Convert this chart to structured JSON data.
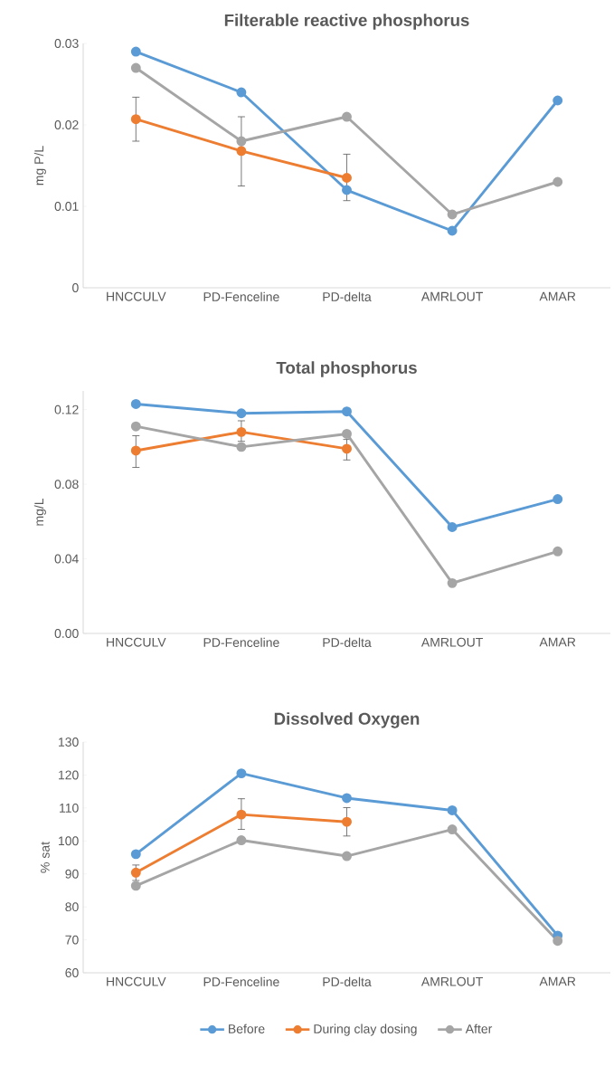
{
  "chart_data": [
    {
      "type": "line",
      "title": "Filterable reactive phosphorus",
      "ylabel": "mg P/L",
      "categories": [
        "HNCCULV",
        "PD-Fenceline",
        "PD-delta",
        "AMRLOUT",
        "AMAR"
      ],
      "ylim": [
        0,
        0.03
      ],
      "yticks": [
        0,
        0.01,
        0.02,
        0.03
      ],
      "marker": "circle",
      "line_style": "solid",
      "series": [
        {
          "color": "#5b9bd5",
          "values": [
            0.029,
            0.024,
            0.012,
            0.007,
            0.023
          ]
        },
        {
          "color": "#ed7d31",
          "values": [
            0.0207,
            0.0168,
            0.0135,
            null,
            null
          ],
          "errors": [
            [
              0.018,
              0.0234
            ],
            [
              0.0125,
              0.021
            ],
            [
              0.0107,
              0.0164
            ],
            null,
            null
          ]
        },
        {
          "color": "#a5a5a5",
          "values": [
            0.027,
            0.018,
            0.021,
            0.009,
            0.013
          ]
        }
      ]
    },
    {
      "type": "line",
      "title": "Total phosphorus",
      "ylabel": "mg/L",
      "categories": [
        "HNCCULV",
        "PD-Fenceline",
        "PD-delta",
        "AMRLOUT",
        "AMAR"
      ],
      "ylim": [
        0,
        0.13
      ],
      "yticks": [
        {
          "value": 0,
          "label": "0.00"
        },
        0.04,
        0.08,
        0.12
      ],
      "marker": "circle",
      "line_style": "solid",
      "series": [
        {
          "color": "#5b9bd5",
          "values": [
            0.123,
            0.118,
            0.119,
            0.057,
            0.072
          ]
        },
        {
          "color": "#ed7d31",
          "values": [
            0.098,
            0.108,
            0.099,
            null,
            null
          ],
          "errors": [
            [
              0.089,
              0.106
            ],
            [
              0.103,
              0.114
            ],
            [
              0.093,
              0.104
            ],
            null,
            null
          ]
        },
        {
          "color": "#a5a5a5",
          "values": [
            0.111,
            0.1,
            0.107,
            0.027,
            0.044
          ]
        }
      ]
    },
    {
      "type": "line",
      "title": "Dissolved Oxygen",
      "ylabel": "% sat",
      "categories": [
        "HNCCULV",
        "PD-Fenceline",
        "PD-delta",
        "AMRLOUT",
        "AMAR"
      ],
      "ylim": [
        60,
        130
      ],
      "yticks": [
        60,
        70,
        80,
        90,
        100,
        110,
        120,
        130
      ],
      "marker": "circle",
      "line_style": "solid",
      "legend": "bottom",
      "series": [
        {
          "name": "Before",
          "color": "#5b9bd5",
          "values": [
            96,
            120.5,
            113,
            109.3,
            71.3
          ]
        },
        {
          "name": "During clay dosing",
          "color": "#ed7d31",
          "values": [
            90.4,
            108,
            105.8,
            null,
            null
          ],
          "errors": [
            [
              88,
              92.7
            ],
            [
              103.5,
              112.8
            ],
            [
              101.5,
              110.1
            ],
            null,
            null
          ]
        },
        {
          "name": "After",
          "color": "#a5a5a5",
          "values": [
            86.4,
            100.2,
            95.4,
            103.5,
            69.7
          ]
        }
      ]
    }
  ]
}
